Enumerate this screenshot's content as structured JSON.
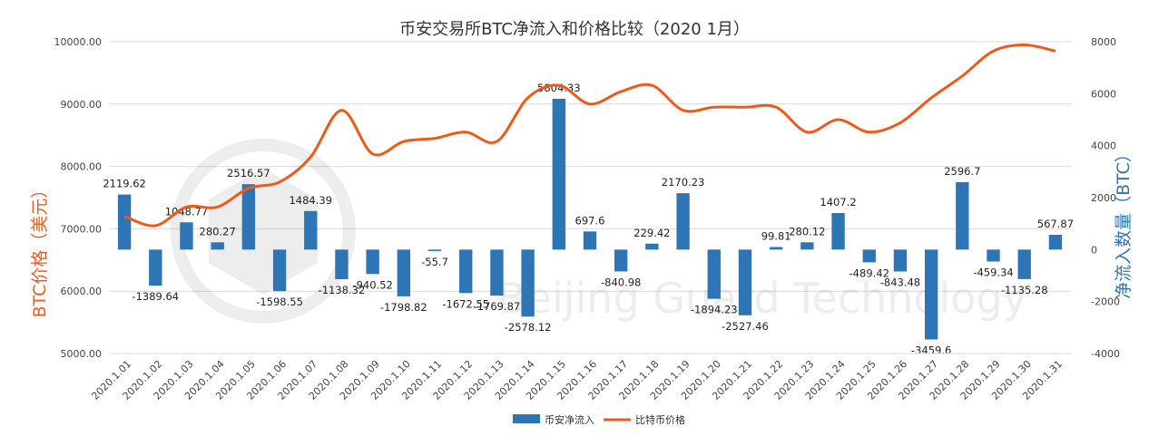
{
  "chart_data": {
    "type": "bar+line",
    "title": "币安交易所BTC净流入和价格比较（2020 1月）",
    "y_left_label": "BTC价格（美元）",
    "y_right_label": "净流入数量（BTC）",
    "y_left_ticks": [
      "10000.00",
      "9000.00",
      "8000.00",
      "7000.00",
      "6000.00",
      "5000.00"
    ],
    "y_left_tick_values": [
      10000,
      9000,
      8000,
      7000,
      6000,
      5000
    ],
    "y_right_ticks": [
      "8000",
      "6000",
      "4000",
      "2000",
      "0",
      "-2000",
      "-4000"
    ],
    "y_right_tick_values": [
      8000,
      6000,
      4000,
      2000,
      0,
      -2000,
      -4000
    ],
    "ylim_left": [
      5000,
      10000
    ],
    "ylim_right": [
      -4000,
      8000
    ],
    "categories": [
      "2020.1.01",
      "2020.1.02",
      "2020.1.03",
      "2020.1.04",
      "2020.1.05",
      "2020.1.06",
      "2020.1.07",
      "2020.1.08",
      "2020.1.09",
      "2020.1.10",
      "2020.1.11",
      "2020.1.12",
      "2020.1.13",
      "2020.1.14",
      "2020.1.15",
      "2020.1.16",
      "2020.1.17",
      "2020.1.18",
      "2020.1.19",
      "2020.1.20",
      "2020.1.21",
      "2020.1.22",
      "2020.1.23",
      "2020.1.24",
      "2020.1.25",
      "2020.1.26",
      "2020.1.27",
      "2020.1.28",
      "2020.1.29",
      "2020.1.30",
      "2020.1.31"
    ],
    "series": [
      {
        "name": "币安净流入",
        "type": "bar",
        "axis": "right",
        "color": "#2e75b6",
        "values": [
          2119.62,
          -1389.64,
          1048.77,
          280.27,
          2516.57,
          -1598.55,
          1484.39,
          -1138.32,
          -940.52,
          -1798.82,
          -55.7,
          -1672.55,
          -1769.87,
          -2578.12,
          5804.33,
          697.6,
          -840.98,
          229.42,
          2170.23,
          -1894.23,
          -2527.46,
          99.81,
          280.12,
          1407.2,
          -489.42,
          -843.48,
          -3459.6,
          2596.7,
          -459.34,
          -1135.28,
          567.87
        ],
        "labels": [
          "2119.62",
          "-1389.64",
          "1048.77",
          "280.27",
          "2516.57",
          "-1598.55",
          "1484.39",
          "-1138.32",
          "-940.52",
          "-1798.82",
          "-55.7",
          "-1672.55",
          "-1769.87",
          "-2578.12",
          "5804.33",
          "697.6",
          "-840.98",
          "229.42",
          "2170.23",
          "-1894.23",
          "-2527.46",
          "99.81",
          "280.12",
          "1407.2",
          "-489.42",
          "-843.48",
          "-3459.6",
          "2596.7",
          "-459.34",
          "-1135.28",
          "567.87"
        ]
      },
      {
        "name": "比特币价格",
        "type": "line",
        "axis": "left",
        "color": "#f05a16",
        "values": [
          7200,
          7050,
          7350,
          7350,
          7650,
          7750,
          8150,
          8900,
          8200,
          8400,
          8450,
          8550,
          8400,
          9100,
          9300,
          9000,
          9200,
          9300,
          8900,
          8950,
          8950,
          8950,
          8550,
          8750,
          8550,
          8700,
          9100,
          9450,
          9850,
          9950,
          9850
        ]
      }
    ],
    "legend_position": "bottom",
    "watermark": "北京链安 Beijing Guard Technology"
  }
}
